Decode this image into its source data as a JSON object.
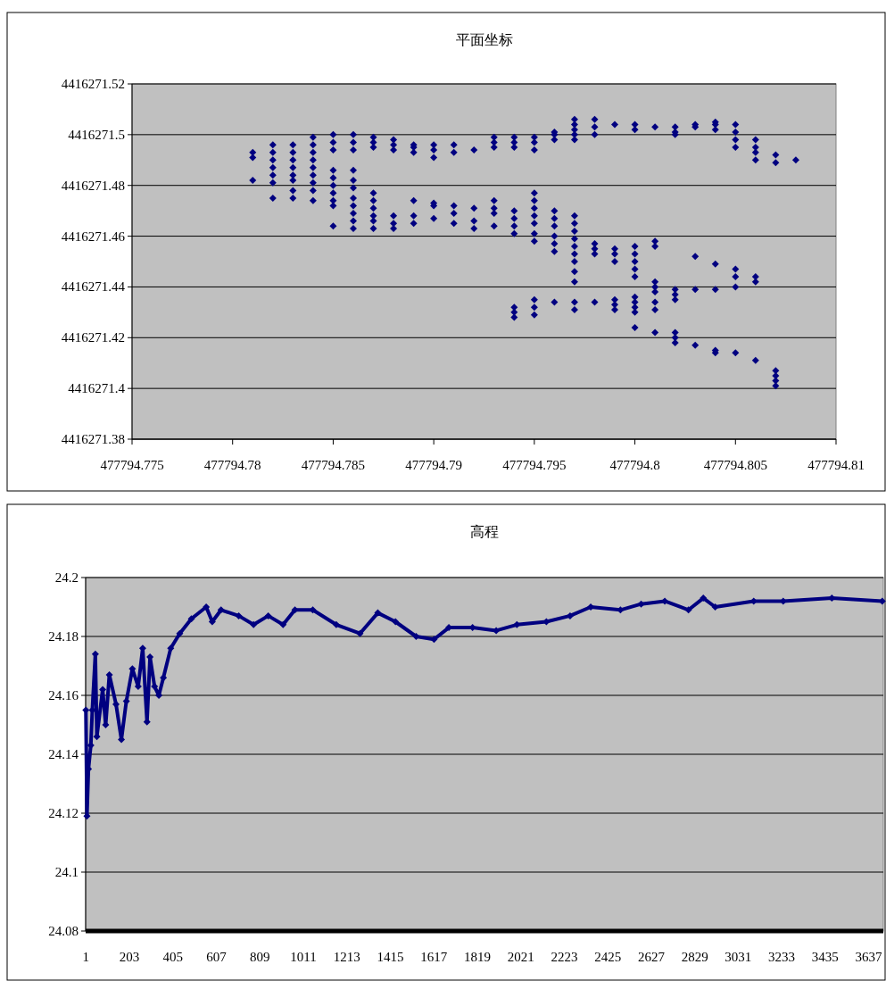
{
  "chart_data": [
    {
      "type": "scatter",
      "title": "平面坐标",
      "marker": "diamond",
      "grid": "y",
      "xlim": [
        477794.775,
        477794.81
      ],
      "xticks": [
        477794.775,
        477794.78,
        477794.785,
        477794.79,
        477794.795,
        477794.8,
        477794.805,
        477794.81
      ],
      "ylim": [
        4416271.38,
        4416271.52
      ],
      "yticks": [
        4416271.38,
        4416271.4,
        4416271.42,
        4416271.44,
        4416271.46,
        4416271.48,
        4416271.5,
        4416271.52
      ],
      "series": [
        {
          "color": "#000080",
          "x": [
            477794.781,
            477794.781,
            477794.781,
            477794.782,
            477794.782,
            477794.782,
            477794.782,
            477794.782,
            477794.782,
            477794.782,
            477794.783,
            477794.783,
            477794.783,
            477794.783,
            477794.783,
            477794.783,
            477794.783,
            477794.783,
            477794.784,
            477794.784,
            477794.784,
            477794.784,
            477794.784,
            477794.784,
            477794.784,
            477794.784,
            477794.784,
            477794.785,
            477794.785,
            477794.785,
            477794.785,
            477794.785,
            477794.785,
            477794.785,
            477794.785,
            477794.785,
            477794.785,
            477794.786,
            477794.786,
            477794.786,
            477794.786,
            477794.786,
            477794.786,
            477794.786,
            477794.786,
            477794.786,
            477794.786,
            477794.786,
            477794.787,
            477794.787,
            477794.787,
            477794.787,
            477794.787,
            477794.787,
            477794.787,
            477794.787,
            477794.787,
            477794.788,
            477794.788,
            477794.788,
            477794.788,
            477794.788,
            477794.788,
            477794.789,
            477794.789,
            477794.789,
            477794.789,
            477794.789,
            477794.789,
            477794.79,
            477794.79,
            477794.79,
            477794.79,
            477794.79,
            477794.79,
            477794.791,
            477794.791,
            477794.791,
            477794.791,
            477794.791,
            477794.792,
            477794.792,
            477794.792,
            477794.792,
            477794.793,
            477794.793,
            477794.793,
            477794.793,
            477794.793,
            477794.793,
            477794.793,
            477794.794,
            477794.794,
            477794.794,
            477794.794,
            477794.794,
            477794.794,
            477794.794,
            477794.794,
            477794.794,
            477794.794,
            477794.795,
            477794.795,
            477794.795,
            477794.795,
            477794.795,
            477794.795,
            477794.795,
            477794.795,
            477794.795,
            477794.795,
            477794.795,
            477794.795,
            477794.795,
            477794.796,
            477794.796,
            477794.796,
            477794.796,
            477794.796,
            477794.796,
            477794.796,
            477794.796,
            477794.796,
            477794.796,
            477794.797,
            477794.797,
            477794.797,
            477794.797,
            477794.797,
            477794.797,
            477794.797,
            477794.797,
            477794.797,
            477794.797,
            477794.797,
            477794.797,
            477794.797,
            477794.797,
            477794.797,
            477794.797,
            477794.798,
            477794.798,
            477794.798,
            477794.798,
            477794.798,
            477794.798,
            477794.798,
            477794.799,
            477794.799,
            477794.799,
            477794.799,
            477794.799,
            477794.799,
            477794.799,
            477794.8,
            477794.8,
            477794.8,
            477794.8,
            477794.8,
            477794.8,
            477794.8,
            477794.8,
            477794.8,
            477794.8,
            477794.8,
            477794.8,
            477794.801,
            477794.801,
            477794.801,
            477794.801,
            477794.801,
            477794.801,
            477794.801,
            477794.801,
            477794.801,
            477794.802,
            477794.802,
            477794.802,
            477794.802,
            477794.802,
            477794.802,
            477794.802,
            477794.802,
            477794.802,
            477794.803,
            477794.803,
            477794.803,
            477794.803,
            477794.803,
            477794.804,
            477794.804,
            477794.804,
            477794.804,
            477794.804,
            477794.804,
            477794.804,
            477794.805,
            477794.805,
            477794.805,
            477794.805,
            477794.805,
            477794.805,
            477794.805,
            477794.805,
            477794.806,
            477794.806,
            477794.806,
            477794.806,
            477794.806,
            477794.806,
            477794.806,
            477794.807,
            477794.807,
            477794.807,
            477794.807,
            477794.807,
            477794.807,
            477794.808
          ],
          "values": [
            4416271.493,
            4416271.491,
            4416271.482,
            4416271.496,
            4416271.493,
            4416271.49,
            4416271.487,
            4416271.484,
            4416271.481,
            4416271.475,
            4416271.496,
            4416271.493,
            4416271.49,
            4416271.487,
            4416271.484,
            4416271.482,
            4416271.478,
            4416271.475,
            4416271.499,
            4416271.496,
            4416271.493,
            4416271.49,
            4416271.487,
            4416271.484,
            4416271.481,
            4416271.478,
            4416271.474,
            4416271.5,
            4416271.497,
            4416271.494,
            4416271.486,
            4416271.483,
            4416271.48,
            4416271.477,
            4416271.474,
            4416271.472,
            4416271.464,
            4416271.5,
            4416271.497,
            4416271.494,
            4416271.486,
            4416271.482,
            4416271.479,
            4416271.475,
            4416271.472,
            4416271.469,
            4416271.466,
            4416271.463,
            4416271.499,
            4416271.497,
            4416271.495,
            4416271.477,
            4416271.474,
            4416271.471,
            4416271.468,
            4416271.466,
            4416271.463,
            4416271.498,
            4416271.496,
            4416271.494,
            4416271.468,
            4416271.465,
            4416271.463,
            4416271.496,
            4416271.495,
            4416271.493,
            4416271.474,
            4416271.468,
            4416271.465,
            4416271.496,
            4416271.494,
            4416271.491,
            4416271.473,
            4416271.472,
            4416271.467,
            4416271.496,
            4416271.493,
            4416271.472,
            4416271.469,
            4416271.465,
            4416271.494,
            4416271.471,
            4416271.466,
            4416271.463,
            4416271.499,
            4416271.497,
            4416271.495,
            4416271.474,
            4416271.471,
            4416271.469,
            4416271.464,
            4416271.499,
            4416271.497,
            4416271.495,
            4416271.47,
            4416271.467,
            4416271.464,
            4416271.461,
            4416271.432,
            4416271.43,
            4416271.428,
            4416271.499,
            4416271.497,
            4416271.494,
            4416271.477,
            4416271.474,
            4416271.471,
            4416271.468,
            4416271.465,
            4416271.461,
            4416271.458,
            4416271.435,
            4416271.432,
            4416271.429,
            4416271.501,
            4416271.5,
            4416271.498,
            4416271.47,
            4416271.467,
            4416271.464,
            4416271.46,
            4416271.457,
            4416271.454,
            4416271.434,
            4416271.506,
            4416271.504,
            4416271.502,
            4416271.5,
            4416271.498,
            4416271.468,
            4416271.465,
            4416271.462,
            4416271.459,
            4416271.456,
            4416271.453,
            4416271.45,
            4416271.446,
            4416271.442,
            4416271.434,
            4416271.431,
            4416271.506,
            4416271.503,
            4416271.5,
            4416271.457,
            4416271.455,
            4416271.453,
            4416271.434,
            4416271.504,
            4416271.455,
            4416271.453,
            4416271.45,
            4416271.435,
            4416271.433,
            4416271.431,
            4416271.504,
            4416271.502,
            4416271.456,
            4416271.453,
            4416271.45,
            4416271.447,
            4416271.444,
            4416271.436,
            4416271.434,
            4416271.432,
            4416271.43,
            4416271.424,
            4416271.503,
            4416271.458,
            4416271.456,
            4416271.442,
            4416271.44,
            4416271.438,
            4416271.434,
            4416271.431,
            4416271.422,
            4416271.503,
            4416271.501,
            4416271.5,
            4416271.439,
            4416271.437,
            4416271.435,
            4416271.422,
            4416271.42,
            4416271.418,
            4416271.504,
            4416271.503,
            4416271.452,
            4416271.439,
            4416271.417,
            4416271.505,
            4416271.504,
            4416271.502,
            4416271.449,
            4416271.439,
            4416271.415,
            4416271.414,
            4416271.504,
            4416271.501,
            4416271.498,
            4416271.495,
            4416271.447,
            4416271.444,
            4416271.44,
            4416271.414,
            4416271.498,
            4416271.495,
            4416271.493,
            4416271.49,
            4416271.444,
            4416271.442,
            4416271.411,
            4416271.492,
            4416271.489,
            4416271.407,
            4416271.405,
            4416271.403,
            4416271.401,
            4416271.49
          ]
        }
      ]
    },
    {
      "type": "line",
      "title": "高程",
      "marker": "diamond",
      "grid": "y",
      "xlim": [
        0,
        3705
      ],
      "xticks": [
        1,
        203,
        405,
        607,
        809,
        1011,
        1213,
        1415,
        1617,
        1819,
        2021,
        2223,
        2425,
        2627,
        2829,
        3031,
        3233,
        3435,
        3637
      ],
      "ylim": [
        24.08,
        24.2
      ],
      "yticks": [
        24.08,
        24.1,
        24.12,
        24.14,
        24.16,
        24.18,
        24.2
      ],
      "series": [
        {
          "color": "#000080",
          "x": [
            1,
            6,
            13,
            24,
            31,
            45,
            52,
            79,
            93,
            110,
            141,
            166,
            189,
            217,
            244,
            265,
            285,
            299,
            320,
            340,
            361,
            395,
            437,
            491,
            560,
            588,
            629,
            711,
            780,
            848,
            917,
            972,
            1055,
            1164,
            1274,
            1357,
            1439,
            1535,
            1618,
            1687,
            1797,
            1907,
            2003,
            2140,
            2250,
            2346,
            2484,
            2580,
            2690,
            2800,
            2869,
            2924,
            3103,
            3240,
            3466,
            3700
          ],
          "values": [
            24.155,
            24.119,
            24.135,
            24.143,
            24.155,
            24.174,
            24.146,
            24.162,
            24.15,
            24.167,
            24.157,
            24.145,
            24.158,
            24.169,
            24.163,
            24.176,
            24.151,
            24.173,
            24.163,
            24.16,
            24.166,
            24.176,
            24.181,
            24.186,
            24.19,
            24.185,
            24.189,
            24.187,
            24.184,
            24.187,
            24.184,
            24.189,
            24.189,
            24.184,
            24.181,
            24.188,
            24.185,
            24.18,
            24.179,
            24.183,
            24.183,
            24.182,
            24.184,
            24.185,
            24.187,
            24.19,
            24.189,
            24.191,
            24.192,
            24.189,
            24.193,
            24.19,
            24.192,
            24.192,
            24.193,
            24.192
          ]
        }
      ]
    }
  ]
}
